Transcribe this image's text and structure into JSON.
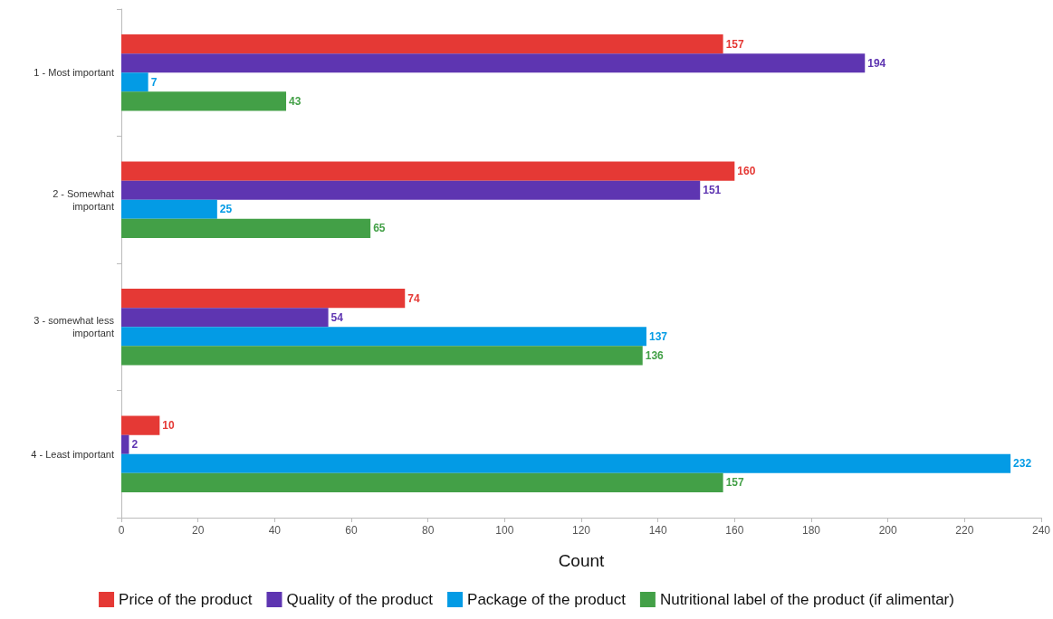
{
  "chart_data": {
    "type": "bar",
    "orientation": "horizontal",
    "xlabel": "Count",
    "categories": [
      "1 - Most important",
      "2 - Somewhat\nimportant",
      "3 - somewhat less\nimportant",
      "4 - Least important"
    ],
    "series": [
      {
        "name": "Price of the product",
        "color": "#e53935",
        "values": [
          157,
          160,
          74,
          10
        ]
      },
      {
        "name": "Quality of the product",
        "color": "#5e35b1",
        "values": [
          194,
          151,
          54,
          2
        ]
      },
      {
        "name": "Package of the product",
        "color": "#039be5",
        "values": [
          7,
          25,
          137,
          232
        ]
      },
      {
        "name": "Nutritional label of the product (if alimentar)",
        "color": "#43a047",
        "values": [
          43,
          65,
          136,
          157
        ]
      }
    ],
    "xlim": [
      0,
      240
    ],
    "xticks": [
      0,
      20,
      40,
      60,
      80,
      100,
      120,
      140,
      160,
      180,
      200,
      220,
      240
    ],
    "data_labels": true,
    "grid": false,
    "legend": "bottom"
  }
}
